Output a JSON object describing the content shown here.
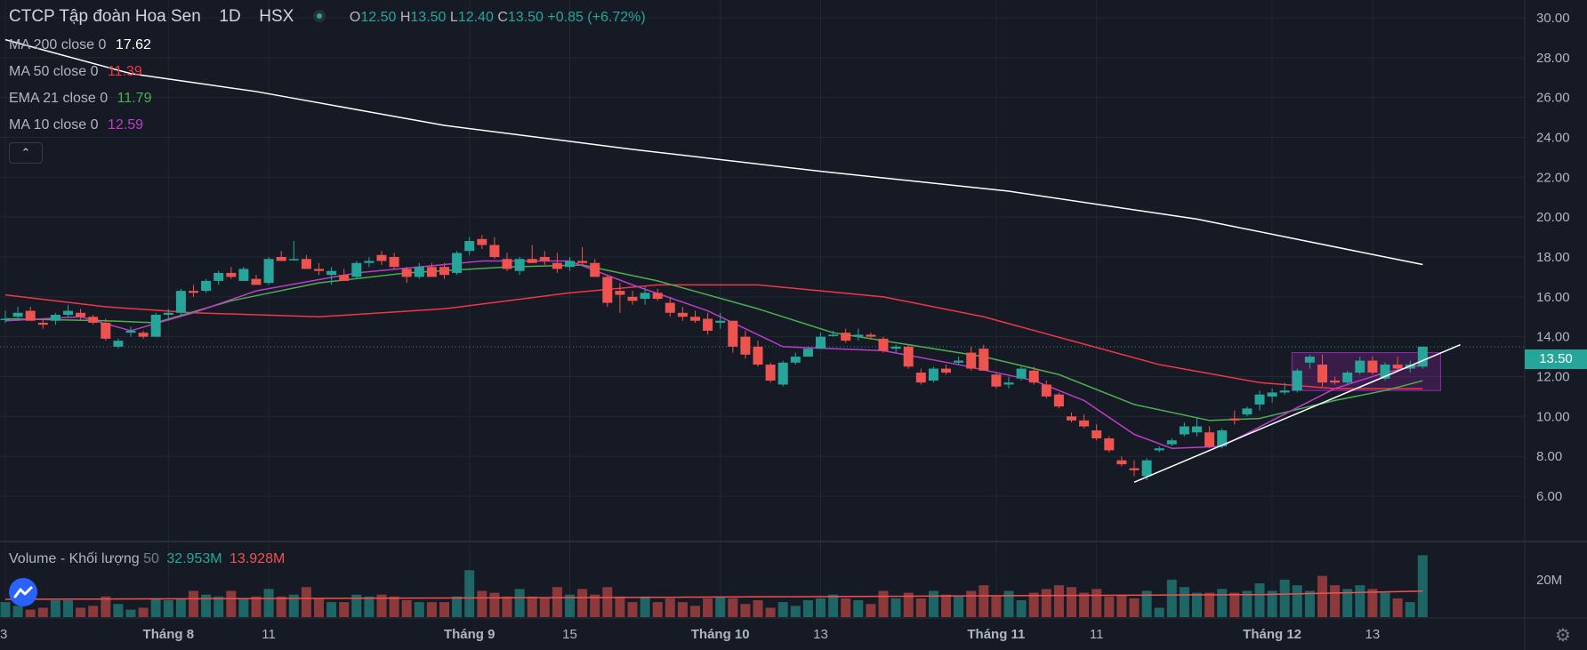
{
  "header": {
    "symbol": "CTCP Tập đoàn Hoa Sen",
    "interval": "1D",
    "exchange": "HSX",
    "ohlc": {
      "o_label": "O",
      "o": "12.50",
      "h_label": "H",
      "h": "13.50",
      "l_label": "L",
      "l": "12.40",
      "c_label": "C",
      "c": "13.50",
      "change": "+0.85 (+6.72%)"
    }
  },
  "indicators": [
    {
      "name": "MA 200 close 0",
      "value": "17.62",
      "color": "#ffffff"
    },
    {
      "name": "MA 50 close 0",
      "value": "11.39",
      "color": "#f23645"
    },
    {
      "name": "EMA 21 close 0",
      "value": "11.79",
      "color": "#4caf50"
    },
    {
      "name": "MA 10 close 0",
      "value": "12.59",
      "color": "#ba3ec9"
    }
  ],
  "volume_legend": {
    "name": "Volume - Khối lượng",
    "length": "50",
    "value": "32.953M",
    "ma_value": "13.928M"
  },
  "price_tag": "13.50",
  "icons": {
    "collapse": "chevron-up-icon",
    "logo": "tradingview-logo-icon",
    "settings": "gear-icon"
  },
  "colors": {
    "up": "#26a69a",
    "down": "#ef5350",
    "background": "#161a25",
    "grid": "#232733"
  },
  "chart_data": {
    "type": "candlestick",
    "title": "CTCP Tập đoàn Hoa Sen",
    "price_axis": {
      "ticks": [
        "6.00",
        "8.00",
        "10.00",
        "12.00",
        "14.00",
        "16.00",
        "18.00",
        "20.00",
        "22.00",
        "24.00",
        "26.00",
        "28.00",
        "30.00"
      ],
      "ylim": [
        5,
        30.5
      ]
    },
    "volume_axis": {
      "ticks": [
        "20M"
      ],
      "ylim": [
        0,
        37
      ]
    },
    "x_ticks": [
      "3",
      "Tháng 8",
      "11",
      "Tháng 9",
      "15",
      "Tháng 10",
      "13",
      "Tháng 11",
      "11",
      "Tháng 12",
      "13"
    ],
    "x_tick_index": [
      0,
      13,
      21,
      37,
      45,
      57,
      65,
      79,
      87,
      101,
      109
    ],
    "candles": [
      {
        "o": 14.9,
        "h": 15.3,
        "l": 14.7,
        "c": 14.9,
        "v": 8
      },
      {
        "o": 15.0,
        "h": 15.5,
        "l": 14.8,
        "c": 15.2,
        "v": 6
      },
      {
        "o": 15.3,
        "h": 15.5,
        "l": 14.8,
        "c": 14.8,
        "v": 4
      },
      {
        "o": 14.7,
        "h": 14.9,
        "l": 14.4,
        "c": 14.6,
        "v": 5
      },
      {
        "o": 14.8,
        "h": 15.2,
        "l": 14.6,
        "c": 15.1,
        "v": 9
      },
      {
        "o": 15.1,
        "h": 15.6,
        "l": 15.0,
        "c": 15.3,
        "v": 9
      },
      {
        "o": 15.2,
        "h": 15.4,
        "l": 14.8,
        "c": 15.0,
        "v": 5
      },
      {
        "o": 15.0,
        "h": 15.1,
        "l": 14.6,
        "c": 14.7,
        "v": 6
      },
      {
        "o": 14.7,
        "h": 14.9,
        "l": 13.8,
        "c": 13.9,
        "v": 11
      },
      {
        "o": 13.5,
        "h": 13.9,
        "l": 13.4,
        "c": 13.8,
        "v": 7
      },
      {
        "o": 14.2,
        "h": 14.5,
        "l": 14.0,
        "c": 14.3,
        "v": 4
      },
      {
        "o": 14.2,
        "h": 14.3,
        "l": 13.9,
        "c": 14.0,
        "v": 5
      },
      {
        "o": 14.0,
        "h": 15.2,
        "l": 14.0,
        "c": 15.1,
        "v": 10
      },
      {
        "o": 15.1,
        "h": 15.4,
        "l": 14.9,
        "c": 15.2,
        "v": 9
      },
      {
        "o": 15.2,
        "h": 16.4,
        "l": 15.1,
        "c": 16.3,
        "v": 10
      },
      {
        "o": 16.3,
        "h": 16.6,
        "l": 16.0,
        "c": 16.2,
        "v": 14
      },
      {
        "o": 16.3,
        "h": 16.9,
        "l": 16.2,
        "c": 16.8,
        "v": 12
      },
      {
        "o": 16.8,
        "h": 17.3,
        "l": 16.6,
        "c": 17.2,
        "v": 11
      },
      {
        "o": 17.2,
        "h": 17.5,
        "l": 16.9,
        "c": 17.0,
        "v": 14
      },
      {
        "o": 16.8,
        "h": 17.5,
        "l": 16.8,
        "c": 17.4,
        "v": 10
      },
      {
        "o": 16.9,
        "h": 17.1,
        "l": 16.6,
        "c": 16.6,
        "v": 11
      },
      {
        "o": 16.7,
        "h": 18.0,
        "l": 16.6,
        "c": 17.9,
        "v": 15
      },
      {
        "o": 18.0,
        "h": 18.3,
        "l": 17.8,
        "c": 17.8,
        "v": 11
      },
      {
        "o": 17.9,
        "h": 18.8,
        "l": 17.8,
        "c": 17.9,
        "v": 12
      },
      {
        "o": 17.9,
        "h": 18.1,
        "l": 17.4,
        "c": 17.4,
        "v": 16
      },
      {
        "o": 17.4,
        "h": 17.7,
        "l": 17.1,
        "c": 17.3,
        "v": 10
      },
      {
        "o": 17.1,
        "h": 17.5,
        "l": 16.6,
        "c": 17.3,
        "v": 8
      },
      {
        "o": 17.1,
        "h": 17.4,
        "l": 16.8,
        "c": 16.8,
        "v": 8
      },
      {
        "o": 17.0,
        "h": 17.8,
        "l": 16.9,
        "c": 17.7,
        "v": 12
      },
      {
        "o": 17.7,
        "h": 18.0,
        "l": 17.5,
        "c": 17.8,
        "v": 11
      },
      {
        "o": 18.1,
        "h": 18.3,
        "l": 17.6,
        "c": 17.8,
        "v": 12
      },
      {
        "o": 18.0,
        "h": 18.2,
        "l": 17.4,
        "c": 17.5,
        "v": 11
      },
      {
        "o": 17.4,
        "h": 17.5,
        "l": 16.7,
        "c": 17.0,
        "v": 9
      },
      {
        "o": 17.0,
        "h": 17.7,
        "l": 16.9,
        "c": 17.5,
        "v": 8
      },
      {
        "o": 17.5,
        "h": 17.7,
        "l": 17.0,
        "c": 17.0,
        "v": 8
      },
      {
        "o": 17.5,
        "h": 17.7,
        "l": 16.9,
        "c": 17.1,
        "v": 8
      },
      {
        "o": 17.2,
        "h": 18.3,
        "l": 17.1,
        "c": 18.2,
        "v": 11
      },
      {
        "o": 18.3,
        "h": 19.0,
        "l": 18.1,
        "c": 18.8,
        "v": 25
      },
      {
        "o": 18.9,
        "h": 19.1,
        "l": 18.4,
        "c": 18.6,
        "v": 14
      },
      {
        "o": 18.6,
        "h": 19.0,
        "l": 17.9,
        "c": 18.0,
        "v": 13
      },
      {
        "o": 17.9,
        "h": 18.2,
        "l": 17.3,
        "c": 17.4,
        "v": 11
      },
      {
        "o": 17.3,
        "h": 18.0,
        "l": 17.1,
        "c": 17.9,
        "v": 15
      },
      {
        "o": 17.9,
        "h": 18.6,
        "l": 17.7,
        "c": 17.7,
        "v": 11
      },
      {
        "o": 18.0,
        "h": 18.3,
        "l": 17.6,
        "c": 17.8,
        "v": 10
      },
      {
        "o": 17.7,
        "h": 18.2,
        "l": 17.2,
        "c": 17.4,
        "v": 16
      },
      {
        "o": 17.5,
        "h": 18.0,
        "l": 17.3,
        "c": 17.8,
        "v": 12
      },
      {
        "o": 17.8,
        "h": 18.5,
        "l": 17.6,
        "c": 17.7,
        "v": 15
      },
      {
        "o": 17.7,
        "h": 17.9,
        "l": 17.0,
        "c": 17.0,
        "v": 12
      },
      {
        "o": 17.0,
        "h": 17.1,
        "l": 15.5,
        "c": 15.7,
        "v": 16
      },
      {
        "o": 16.3,
        "h": 16.7,
        "l": 15.2,
        "c": 16.1,
        "v": 11
      },
      {
        "o": 16.0,
        "h": 16.3,
        "l": 15.6,
        "c": 15.8,
        "v": 8
      },
      {
        "o": 15.9,
        "h": 16.5,
        "l": 15.6,
        "c": 16.2,
        "v": 11
      },
      {
        "o": 16.2,
        "h": 16.4,
        "l": 15.8,
        "c": 15.9,
        "v": 8
      },
      {
        "o": 15.7,
        "h": 16.0,
        "l": 15.0,
        "c": 15.2,
        "v": 10
      },
      {
        "o": 15.2,
        "h": 15.5,
        "l": 14.8,
        "c": 15.0,
        "v": 8
      },
      {
        "o": 15.0,
        "h": 15.3,
        "l": 14.7,
        "c": 14.8,
        "v": 6
      },
      {
        "o": 14.9,
        "h": 15.2,
        "l": 14.1,
        "c": 14.3,
        "v": 10
      },
      {
        "o": 14.7,
        "h": 15.2,
        "l": 14.4,
        "c": 14.8,
        "v": 11
      },
      {
        "o": 14.8,
        "h": 14.8,
        "l": 13.2,
        "c": 13.5,
        "v": 10
      },
      {
        "o": 14.0,
        "h": 14.3,
        "l": 12.9,
        "c": 13.1,
        "v": 7
      },
      {
        "o": 13.5,
        "h": 13.8,
        "l": 12.5,
        "c": 12.6,
        "v": 9
      },
      {
        "o": 12.6,
        "h": 12.7,
        "l": 11.7,
        "c": 11.8,
        "v": 5
      },
      {
        "o": 11.6,
        "h": 12.8,
        "l": 11.5,
        "c": 12.7,
        "v": 8
      },
      {
        "o": 12.7,
        "h": 13.2,
        "l": 12.6,
        "c": 13.0,
        "v": 6
      },
      {
        "o": 13.0,
        "h": 13.5,
        "l": 13.0,
        "c": 13.4,
        "v": 9
      },
      {
        "o": 13.4,
        "h": 14.2,
        "l": 13.4,
        "c": 14.0,
        "v": 10
      },
      {
        "o": 14.1,
        "h": 14.3,
        "l": 14.0,
        "c": 14.1,
        "v": 12
      },
      {
        "o": 14.2,
        "h": 14.4,
        "l": 13.7,
        "c": 13.8,
        "v": 10
      },
      {
        "o": 14.0,
        "h": 14.4,
        "l": 13.8,
        "c": 14.1,
        "v": 9
      },
      {
        "o": 14.1,
        "h": 14.2,
        "l": 13.9,
        "c": 14.0,
        "v": 7
      },
      {
        "o": 13.9,
        "h": 14.0,
        "l": 13.2,
        "c": 13.3,
        "v": 14
      },
      {
        "o": 13.4,
        "h": 13.6,
        "l": 13.2,
        "c": 13.5,
        "v": 10
      },
      {
        "o": 13.5,
        "h": 13.6,
        "l": 12.4,
        "c": 12.5,
        "v": 13
      },
      {
        "o": 12.2,
        "h": 12.4,
        "l": 11.6,
        "c": 11.7,
        "v": 10
      },
      {
        "o": 11.8,
        "h": 12.5,
        "l": 11.7,
        "c": 12.4,
        "v": 14
      },
      {
        "o": 12.4,
        "h": 12.6,
        "l": 12.1,
        "c": 12.2,
        "v": 12
      },
      {
        "o": 12.7,
        "h": 13.0,
        "l": 12.6,
        "c": 12.8,
        "v": 11
      },
      {
        "o": 13.2,
        "h": 13.5,
        "l": 12.3,
        "c": 12.4,
        "v": 14
      },
      {
        "o": 13.4,
        "h": 13.6,
        "l": 12.3,
        "c": 12.3,
        "v": 17
      },
      {
        "o": 12.1,
        "h": 12.2,
        "l": 11.4,
        "c": 11.5,
        "v": 11
      },
      {
        "o": 11.6,
        "h": 12.0,
        "l": 11.4,
        "c": 11.7,
        "v": 14
      },
      {
        "o": 11.9,
        "h": 12.5,
        "l": 11.8,
        "c": 12.4,
        "v": 9
      },
      {
        "o": 12.3,
        "h": 12.5,
        "l": 11.6,
        "c": 11.7,
        "v": 13
      },
      {
        "o": 11.6,
        "h": 11.8,
        "l": 10.9,
        "c": 11.0,
        "v": 15
      },
      {
        "o": 11.1,
        "h": 11.2,
        "l": 10.4,
        "c": 10.5,
        "v": 17
      },
      {
        "o": 10.0,
        "h": 10.2,
        "l": 9.7,
        "c": 9.8,
        "v": 16
      },
      {
        "o": 9.8,
        "h": 10.1,
        "l": 9.4,
        "c": 9.5,
        "v": 13
      },
      {
        "o": 9.3,
        "h": 9.6,
        "l": 8.8,
        "c": 8.9,
        "v": 15
      },
      {
        "o": 8.9,
        "h": 9.0,
        "l": 8.2,
        "c": 8.3,
        "v": 11
      },
      {
        "o": 7.8,
        "h": 8.0,
        "l": 7.5,
        "c": 7.6,
        "v": 12
      },
      {
        "o": 7.4,
        "h": 7.8,
        "l": 7.0,
        "c": 7.3,
        "v": 10
      },
      {
        "o": 7.0,
        "h": 7.9,
        "l": 6.8,
        "c": 7.8,
        "v": 14
      },
      {
        "o": 8.3,
        "h": 8.5,
        "l": 8.2,
        "c": 8.4,
        "v": 5
      },
      {
        "o": 8.6,
        "h": 8.9,
        "l": 8.5,
        "c": 8.8,
        "v": 20
      },
      {
        "o": 9.1,
        "h": 9.7,
        "l": 9.0,
        "c": 9.5,
        "v": 16
      },
      {
        "o": 9.2,
        "h": 9.9,
        "l": 9.0,
        "c": 9.5,
        "v": 13
      },
      {
        "o": 9.2,
        "h": 9.5,
        "l": 8.4,
        "c": 8.5,
        "v": 13
      },
      {
        "o": 8.5,
        "h": 9.4,
        "l": 8.4,
        "c": 9.3,
        "v": 15
      },
      {
        "o": 9.9,
        "h": 10.3,
        "l": 9.6,
        "c": 9.8,
        "v": 13
      },
      {
        "o": 10.1,
        "h": 10.5,
        "l": 10.0,
        "c": 10.4,
        "v": 14
      },
      {
        "o": 10.6,
        "h": 11.3,
        "l": 10.3,
        "c": 11.1,
        "v": 18
      },
      {
        "o": 11.0,
        "h": 11.4,
        "l": 10.7,
        "c": 11.2,
        "v": 14
      },
      {
        "o": 11.2,
        "h": 11.7,
        "l": 11.1,
        "c": 11.3,
        "v": 20
      },
      {
        "o": 11.3,
        "h": 12.4,
        "l": 11.2,
        "c": 12.3,
        "v": 17
      },
      {
        "o": 12.7,
        "h": 13.1,
        "l": 12.4,
        "c": 13.0,
        "v": 14
      },
      {
        "o": 12.6,
        "h": 13.1,
        "l": 11.5,
        "c": 11.7,
        "v": 22
      },
      {
        "o": 11.8,
        "h": 12.0,
        "l": 11.6,
        "c": 11.7,
        "v": 17
      },
      {
        "o": 11.7,
        "h": 12.3,
        "l": 11.6,
        "c": 12.2,
        "v": 15
      },
      {
        "o": 12.2,
        "h": 13.0,
        "l": 12.1,
        "c": 12.8,
        "v": 17
      },
      {
        "o": 12.8,
        "h": 13.0,
        "l": 12.1,
        "c": 12.2,
        "v": 15
      },
      {
        "o": 11.9,
        "h": 12.7,
        "l": 11.8,
        "c": 12.6,
        "v": 13
      },
      {
        "o": 12.6,
        "h": 13.0,
        "l": 12.3,
        "c": 12.4,
        "v": 10
      },
      {
        "o": 12.4,
        "h": 12.8,
        "l": 12.2,
        "c": 12.6,
        "v": 8
      },
      {
        "o": 12.5,
        "h": 13.5,
        "l": 12.4,
        "c": 13.5,
        "v": 33
      }
    ],
    "series": [
      {
        "name": "MA 200 close 0",
        "values": []
      },
      {
        "name": "MA 50 close 0",
        "values": []
      },
      {
        "name": "EMA 21 close 0",
        "values": []
      },
      {
        "name": "MA 10 close 0",
        "values": []
      }
    ],
    "ma200_points": [
      [
        0,
        28.9
      ],
      [
        10,
        27.2
      ],
      [
        20,
        26.3
      ],
      [
        35,
        24.6
      ],
      [
        50,
        23.4
      ],
      [
        65,
        22.3
      ],
      [
        80,
        21.3
      ],
      [
        95,
        19.9
      ],
      [
        110,
        18.0
      ],
      [
        113,
        17.62
      ]
    ],
    "ma50_points": [
      [
        0,
        16.1
      ],
      [
        8,
        15.5
      ],
      [
        15,
        15.2
      ],
      [
        25,
        15.0
      ],
      [
        35,
        15.4
      ],
      [
        45,
        16.2
      ],
      [
        52,
        16.6
      ],
      [
        60,
        16.6
      ],
      [
        70,
        16.0
      ],
      [
        78,
        15.0
      ],
      [
        85,
        13.8
      ],
      [
        92,
        12.6
      ],
      [
        100,
        11.7
      ],
      [
        106,
        11.4
      ],
      [
        113,
        11.39
      ]
    ],
    "ema21_points": [
      [
        0,
        14.9
      ],
      [
        8,
        14.8
      ],
      [
        12,
        14.7
      ],
      [
        18,
        15.8
      ],
      [
        25,
        16.7
      ],
      [
        32,
        17.2
      ],
      [
        40,
        17.5
      ],
      [
        46,
        17.6
      ],
      [
        52,
        16.8
      ],
      [
        60,
        15.4
      ],
      [
        66,
        14.2
      ],
      [
        72,
        13.6
      ],
      [
        78,
        13.0
      ],
      [
        84,
        12.1
      ],
      [
        90,
        10.6
      ],
      [
        96,
        9.8
      ],
      [
        100,
        9.9
      ],
      [
        106,
        10.8
      ],
      [
        110,
        11.3
      ],
      [
        113,
        11.79
      ]
    ],
    "ma10_points": [
      [
        0,
        14.8
      ],
      [
        6,
        15.0
      ],
      [
        10,
        14.3
      ],
      [
        15,
        15.2
      ],
      [
        20,
        16.3
      ],
      [
        28,
        17.2
      ],
      [
        38,
        17.8
      ],
      [
        45,
        17.8
      ],
      [
        50,
        16.6
      ],
      [
        56,
        15.3
      ],
      [
        62,
        13.5
      ],
      [
        66,
        13.4
      ],
      [
        70,
        13.3
      ],
      [
        76,
        12.6
      ],
      [
        82,
        11.8
      ],
      [
        86,
        10.8
      ],
      [
        90,
        9.1
      ],
      [
        93,
        8.4
      ],
      [
        97,
        8.5
      ],
      [
        101,
        9.8
      ],
      [
        106,
        11.4
      ],
      [
        110,
        12.2
      ],
      [
        113,
        12.59
      ]
    ],
    "trendline": {
      "from": [
        90,
        6.7
      ],
      "to": [
        116,
        13.6
      ]
    },
    "range_box": {
      "from_index": 103,
      "to_index": 114,
      "top": 13.2,
      "bottom": 11.3
    },
    "volume_ma": [
      [
        0,
        9.5
      ],
      [
        50,
        10.5
      ],
      [
        100,
        12.0
      ],
      [
        113,
        13.9
      ]
    ]
  }
}
